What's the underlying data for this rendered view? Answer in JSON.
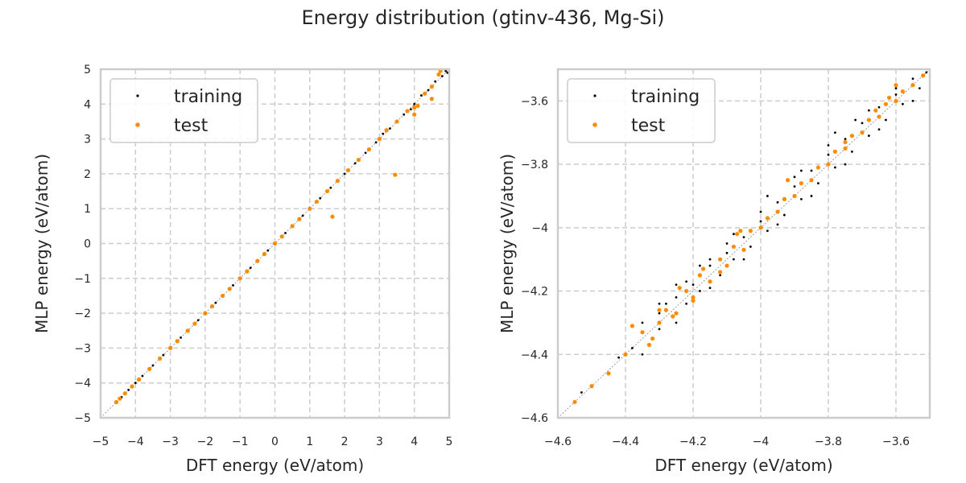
{
  "figure": {
    "title": "Energy distribution (gtinv-436, Mg-Si)"
  },
  "colors": {
    "training": "#000000",
    "test": "#ff8c00",
    "grid": "#cccccc",
    "frame": "#cccccc",
    "diagonal": "#888888"
  },
  "chart_data": [
    {
      "type": "scatter",
      "xlabel": "DFT energy (eV/atom)",
      "ylabel": "MLP energy (eV/atom)",
      "xlim": [
        -5,
        5
      ],
      "ylim": [
        -5,
        5
      ],
      "xticks": [
        -5,
        -4,
        -3,
        -2,
        -1,
        0,
        1,
        2,
        3,
        4,
        5
      ],
      "yticks": [
        -5,
        -4,
        -3,
        -2,
        -1,
        0,
        1,
        2,
        3,
        4,
        5
      ],
      "grid": true,
      "legend": "top-left",
      "diagonal": true,
      "series": [
        {
          "name": "training",
          "color": "#000000",
          "points": [
            [
              -4.55,
              -4.55
            ],
            [
              -4.4,
              -4.41
            ],
            [
              -4.2,
              -4.2
            ],
            [
              -4.0,
              -4.0
            ],
            [
              -3.8,
              -3.8
            ],
            [
              -3.5,
              -3.5
            ],
            [
              -3.2,
              -3.2
            ],
            [
              -3.0,
              -3.0
            ],
            [
              -2.7,
              -2.7
            ],
            [
              -2.5,
              -2.5
            ],
            [
              -2.2,
              -2.2
            ],
            [
              -2.0,
              -2.0
            ],
            [
              -1.7,
              -1.7
            ],
            [
              -1.5,
              -1.5
            ],
            [
              -1.2,
              -1.2
            ],
            [
              -1.0,
              -1.0
            ],
            [
              -0.7,
              -0.7
            ],
            [
              -0.5,
              -0.5
            ],
            [
              -0.2,
              -0.2
            ],
            [
              0.0,
              0.0
            ],
            [
              0.3,
              0.3
            ],
            [
              0.5,
              0.5
            ],
            [
              0.8,
              0.8
            ],
            [
              1.0,
              1.0
            ],
            [
              1.3,
              1.3
            ],
            [
              1.6,
              1.6
            ],
            [
              2.0,
              2.0
            ],
            [
              2.3,
              2.3
            ],
            [
              2.6,
              2.6
            ],
            [
              2.9,
              2.9
            ],
            [
              3.1,
              3.15
            ],
            [
              3.3,
              3.3
            ],
            [
              3.5,
              3.5
            ],
            [
              3.7,
              3.7
            ],
            [
              3.9,
              3.85
            ],
            [
              4.0,
              4.0
            ],
            [
              4.2,
              4.25
            ],
            [
              4.4,
              4.4
            ],
            [
              4.6,
              4.65
            ],
            [
              4.8,
              4.8
            ],
            [
              4.9,
              4.95
            ],
            [
              4.95,
              4.9
            ]
          ]
        },
        {
          "name": "test",
          "color": "#ff8c00",
          "points": [
            [
              -4.55,
              -4.55
            ],
            [
              -4.45,
              -4.45
            ],
            [
              -4.3,
              -4.3
            ],
            [
              -4.1,
              -4.1
            ],
            [
              -3.9,
              -3.9
            ],
            [
              -3.6,
              -3.6
            ],
            [
              -3.3,
              -3.3
            ],
            [
              -3.0,
              -3.0
            ],
            [
              -2.8,
              -2.8
            ],
            [
              -2.5,
              -2.5
            ],
            [
              -2.3,
              -2.3
            ],
            [
              -2.0,
              -2.0
            ],
            [
              -1.8,
              -1.8
            ],
            [
              -1.5,
              -1.5
            ],
            [
              -1.3,
              -1.3
            ],
            [
              -1.0,
              -1.0
            ],
            [
              -0.8,
              -0.8
            ],
            [
              -0.5,
              -0.5
            ],
            [
              -0.3,
              -0.3
            ],
            [
              0.0,
              0.0
            ],
            [
              0.2,
              0.2
            ],
            [
              0.5,
              0.5
            ],
            [
              0.7,
              0.7
            ],
            [
              1.0,
              1.0
            ],
            [
              1.2,
              1.2
            ],
            [
              1.5,
              1.5
            ],
            [
              1.8,
              1.8
            ],
            [
              2.1,
              2.1
            ],
            [
              2.4,
              2.4
            ],
            [
              2.7,
              2.7
            ],
            [
              3.0,
              3.0
            ],
            [
              3.2,
              3.25
            ],
            [
              3.5,
              3.5
            ],
            [
              3.8,
              3.8
            ],
            [
              4.0,
              3.9
            ],
            [
              4.1,
              3.95
            ],
            [
              4.3,
              4.3
            ],
            [
              4.5,
              4.5
            ],
            [
              4.7,
              4.85
            ],
            [
              4.75,
              4.95
            ],
            [
              1.65,
              0.77
            ],
            [
              3.45,
              1.97
            ],
            [
              4.0,
              3.7
            ],
            [
              4.5,
              4.15
            ]
          ]
        }
      ]
    },
    {
      "type": "scatter",
      "xlabel": "DFT energy (eV/atom)",
      "ylabel": "MLP energy (eV/atom)",
      "xlim": [
        -4.6,
        -3.5
      ],
      "ylim": [
        -4.6,
        -3.5
      ],
      "xticks": [
        -4.6,
        -4.4,
        -4.2,
        -4.0,
        -3.8,
        -3.6
      ],
      "yticks": [
        -4.6,
        -4.4,
        -4.2,
        -4.0,
        -3.8,
        -3.6
      ],
      "grid": true,
      "legend": "top-left",
      "diagonal": true,
      "series": [
        {
          "name": "training",
          "color": "#000000",
          "points": [
            [
              -4.55,
              -4.55
            ],
            [
              -4.53,
              -4.52
            ],
            [
              -4.45,
              -4.46
            ],
            [
              -4.42,
              -4.41
            ],
            [
              -4.38,
              -4.38
            ],
            [
              -4.35,
              -4.33
            ],
            [
              -4.33,
              -4.37
            ],
            [
              -4.3,
              -4.27
            ],
            [
              -4.3,
              -4.32
            ],
            [
              -4.28,
              -4.24
            ],
            [
              -4.26,
              -4.28
            ],
            [
              -4.25,
              -4.22
            ],
            [
              -4.22,
              -4.24
            ],
            [
              -4.2,
              -4.18
            ],
            [
              -4.18,
              -4.2
            ],
            [
              -4.15,
              -4.12
            ],
            [
              -4.12,
              -4.15
            ],
            [
              -4.1,
              -4.08
            ],
            [
              -4.08,
              -4.1
            ],
            [
              -4.05,
              -4.03
            ],
            [
              -4.03,
              -4.06
            ],
            [
              -4.0,
              -3.98
            ],
            [
              -3.98,
              -4.01
            ],
            [
              -3.95,
              -3.92
            ],
            [
              -3.93,
              -3.96
            ],
            [
              -3.9,
              -3.87
            ],
            [
              -3.88,
              -3.91
            ],
            [
              -3.85,
              -3.82
            ],
            [
              -3.83,
              -3.86
            ],
            [
              -3.8,
              -3.77
            ],
            [
              -3.78,
              -3.81
            ],
            [
              -3.75,
              -3.72
            ],
            [
              -3.73,
              -3.76
            ],
            [
              -3.7,
              -3.67
            ],
            [
              -3.68,
              -3.71
            ],
            [
              -3.65,
              -3.62
            ],
            [
              -3.63,
              -3.66
            ],
            [
              -3.6,
              -3.58
            ],
            [
              -3.58,
              -3.61
            ],
            [
              -3.55,
              -3.53
            ],
            [
              -3.53,
              -3.56
            ],
            [
              -3.51,
              -3.51
            ],
            [
              -4.35,
              -4.3
            ],
            [
              -4.3,
              -4.24
            ],
            [
              -4.22,
              -4.17
            ],
            [
              -4.15,
              -4.1
            ],
            [
              -4.1,
              -4.05
            ],
            [
              -4.0,
              -3.95
            ],
            [
              -3.9,
              -3.84
            ],
            [
              -3.8,
              -3.74
            ],
            [
              -3.72,
              -3.66
            ],
            [
              -3.6,
              -3.56
            ],
            [
              -4.35,
              -4.4
            ],
            [
              -4.25,
              -4.3
            ],
            [
              -4.15,
              -4.19
            ],
            [
              -4.05,
              -4.1
            ],
            [
              -3.95,
              -3.99
            ],
            [
              -3.85,
              -3.9
            ],
            [
              -3.75,
              -3.8
            ],
            [
              -3.65,
              -3.69
            ],
            [
              -3.55,
              -3.6
            ],
            [
              -4.25,
              -4.18
            ],
            [
              -4.18,
              -4.12
            ],
            [
              -4.08,
              -4.02
            ],
            [
              -3.98,
              -3.9
            ],
            [
              -3.88,
              -3.82
            ],
            [
              -3.78,
              -3.7
            ],
            [
              -3.68,
              -3.63
            ]
          ]
        },
        {
          "name": "test",
          "color": "#ff8c00",
          "points": [
            [
              -4.55,
              -4.55
            ],
            [
              -4.5,
              -4.5
            ],
            [
              -4.45,
              -4.46
            ],
            [
              -4.4,
              -4.4
            ],
            [
              -4.35,
              -4.33
            ],
            [
              -4.33,
              -4.37
            ],
            [
              -4.3,
              -4.3
            ],
            [
              -4.28,
              -4.26
            ],
            [
              -4.25,
              -4.27
            ],
            [
              -4.22,
              -4.2
            ],
            [
              -4.2,
              -4.22
            ],
            [
              -4.18,
              -4.15
            ],
            [
              -4.15,
              -4.17
            ],
            [
              -4.12,
              -4.1
            ],
            [
              -4.1,
              -4.12
            ],
            [
              -4.08,
              -4.06
            ],
            [
              -4.05,
              -4.07
            ],
            [
              -4.03,
              -4.01
            ],
            [
              -4.0,
              -4.0
            ],
            [
              -3.98,
              -3.97
            ],
            [
              -3.95,
              -3.95
            ],
            [
              -3.93,
              -3.91
            ],
            [
              -3.9,
              -3.9
            ],
            [
              -3.88,
              -3.86
            ],
            [
              -3.85,
              -3.85
            ],
            [
              -3.83,
              -3.81
            ],
            [
              -3.8,
              -3.8
            ],
            [
              -3.78,
              -3.76
            ],
            [
              -3.75,
              -3.75
            ],
            [
              -3.73,
              -3.71
            ],
            [
              -3.7,
              -3.7
            ],
            [
              -3.68,
              -3.66
            ],
            [
              -3.65,
              -3.65
            ],
            [
              -3.63,
              -3.61
            ],
            [
              -3.6,
              -3.6
            ],
            [
              -3.58,
              -3.57
            ],
            [
              -3.55,
              -3.55
            ],
            [
              -3.52,
              -3.52
            ],
            [
              -4.38,
              -4.31
            ],
            [
              -4.3,
              -4.26
            ],
            [
              -4.24,
              -4.19
            ],
            [
              -4.17,
              -4.13
            ],
            [
              -4.07,
              -4.02
            ],
            [
              -4.06,
              -4.01
            ],
            [
              -3.92,
              -3.85
            ],
            [
              -3.75,
              -3.73
            ],
            [
              -3.66,
              -3.63
            ],
            [
              -3.62,
              -3.59
            ],
            [
              -3.6,
              -3.55
            ],
            [
              -4.32,
              -4.35
            ],
            [
              -4.26,
              -4.28
            ],
            [
              -4.2,
              -4.23
            ],
            [
              -4.12,
              -4.14
            ]
          ]
        }
      ]
    }
  ]
}
